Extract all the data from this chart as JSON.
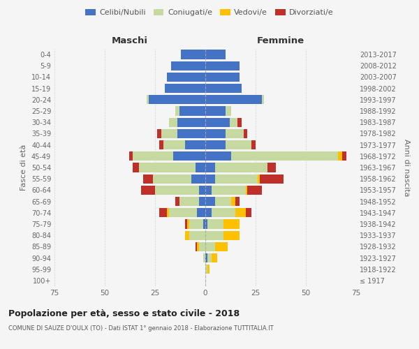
{
  "age_groups": [
    "100+",
    "95-99",
    "90-94",
    "85-89",
    "80-84",
    "75-79",
    "70-74",
    "65-69",
    "60-64",
    "55-59",
    "50-54",
    "45-49",
    "40-44",
    "35-39",
    "30-34",
    "25-29",
    "20-24",
    "15-19",
    "10-14",
    "5-9",
    "0-4"
  ],
  "birth_years": [
    "≤ 1917",
    "1918-1922",
    "1923-1927",
    "1928-1932",
    "1933-1937",
    "1938-1942",
    "1943-1947",
    "1948-1952",
    "1953-1957",
    "1958-1962",
    "1963-1967",
    "1968-1972",
    "1973-1977",
    "1978-1982",
    "1983-1987",
    "1988-1992",
    "1993-1997",
    "1998-2002",
    "2003-2007",
    "2008-2012",
    "2013-2017"
  ],
  "male": {
    "celibi": [
      0,
      0,
      0,
      0,
      0,
      1,
      4,
      3,
      3,
      7,
      5,
      16,
      10,
      14,
      14,
      13,
      28,
      20,
      19,
      17,
      12
    ],
    "coniugati": [
      0,
      0,
      1,
      3,
      8,
      7,
      14,
      10,
      22,
      19,
      28,
      20,
      11,
      8,
      4,
      2,
      1,
      0,
      0,
      0,
      0
    ],
    "vedovi": [
      0,
      0,
      0,
      1,
      2,
      1,
      1,
      0,
      0,
      0,
      0,
      0,
      0,
      0,
      0,
      0,
      0,
      0,
      0,
      0,
      0
    ],
    "divorziati": [
      0,
      0,
      0,
      1,
      0,
      1,
      4,
      2,
      7,
      5,
      3,
      2,
      2,
      2,
      0,
      0,
      0,
      0,
      0,
      0,
      0
    ]
  },
  "female": {
    "nubili": [
      0,
      0,
      1,
      0,
      0,
      1,
      3,
      5,
      3,
      5,
      5,
      13,
      10,
      10,
      12,
      10,
      28,
      18,
      17,
      17,
      10
    ],
    "coniugate": [
      0,
      1,
      2,
      5,
      9,
      8,
      12,
      8,
      17,
      21,
      26,
      53,
      13,
      9,
      4,
      3,
      1,
      0,
      0,
      0,
      0
    ],
    "vedove": [
      0,
      1,
      3,
      6,
      8,
      8,
      5,
      2,
      1,
      1,
      0,
      2,
      0,
      0,
      0,
      0,
      0,
      0,
      0,
      0,
      0
    ],
    "divorziate": [
      0,
      0,
      0,
      0,
      0,
      0,
      3,
      2,
      7,
      12,
      4,
      2,
      2,
      2,
      2,
      0,
      0,
      0,
      0,
      0,
      0
    ]
  },
  "colors": {
    "celibi": "#4472c4",
    "coniugati": "#c5d9a0",
    "vedovi": "#ffc000",
    "divorziati": "#c0302a"
  },
  "xlim": 75,
  "title": "Popolazione per età, sesso e stato civile - 2018",
  "subtitle": "COMUNE DI SAUZE D'OULX (TO) - Dati ISTAT 1° gennaio 2018 - Elaborazione TUTTITALIA.IT",
  "xlabel_left": "Maschi",
  "xlabel_right": "Femmine",
  "ylabel_left": "Fasce di età",
  "ylabel_right": "Anni di nascita",
  "legend_labels": [
    "Celibi/Nubili",
    "Coniugati/e",
    "Vedovi/e",
    "Divorziati/e"
  ],
  "background_color": "#f5f5f5",
  "grid_color": "#cccccc"
}
